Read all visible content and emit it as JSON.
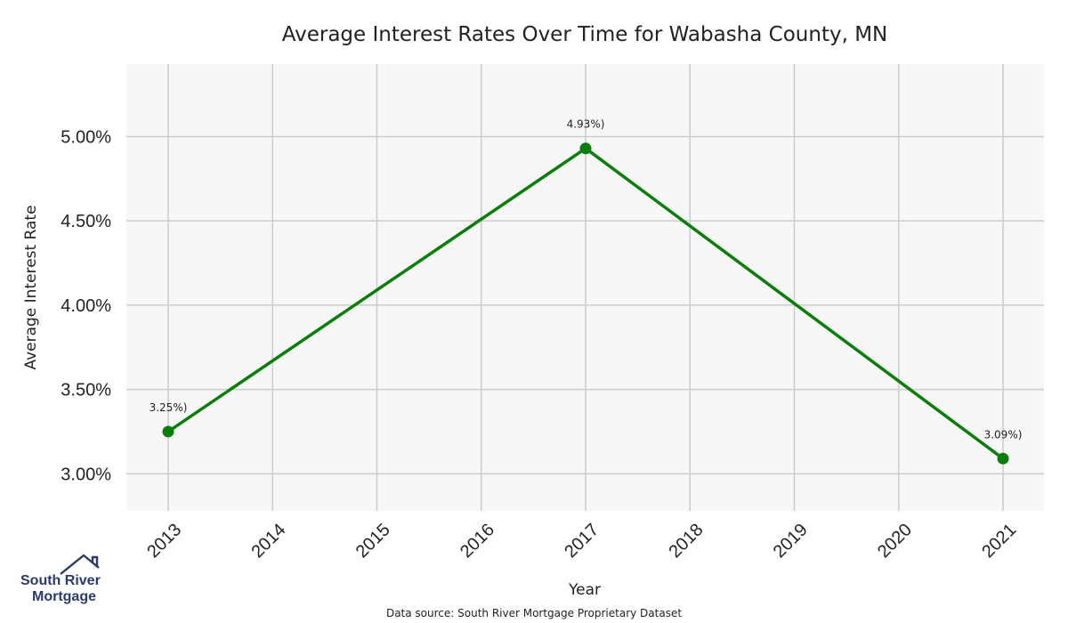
{
  "chart_data": {
    "type": "line",
    "title": "Average Interest Rates Over Time for Wabasha County, MN",
    "xlabel": "Year",
    "ylabel": "Average Interest Rate",
    "x": [
      "2013",
      "2014",
      "2015",
      "2016",
      "2017",
      "2018",
      "2019",
      "2020",
      "2021"
    ],
    "y_ticks": [
      "3.00%",
      "3.50%",
      "4.00%",
      "4.50%",
      "5.00%"
    ],
    "ylim": [
      2.78,
      5.43
    ],
    "grid": true,
    "series": [
      {
        "points": [
          {
            "x": "2013",
            "y": 3.25,
            "label": "3.25%)"
          },
          {
            "x": "2017",
            "y": 4.93,
            "label": "4.93%)"
          },
          {
            "x": "2021",
            "y": 3.09,
            "label": "3.09%)"
          }
        ],
        "color": "#0a7d0a"
      }
    ]
  },
  "source_note": "Data source: South River Mortgage Proprietary Dataset",
  "logo": {
    "line1": "South River",
    "line2": "Mortgage",
    "icon": "house-roof-icon",
    "color": "#2d3a6e"
  },
  "colors": {
    "plot_background": "#f7f7f7",
    "grid": "#cccccc",
    "line": "#0a7d0a"
  }
}
